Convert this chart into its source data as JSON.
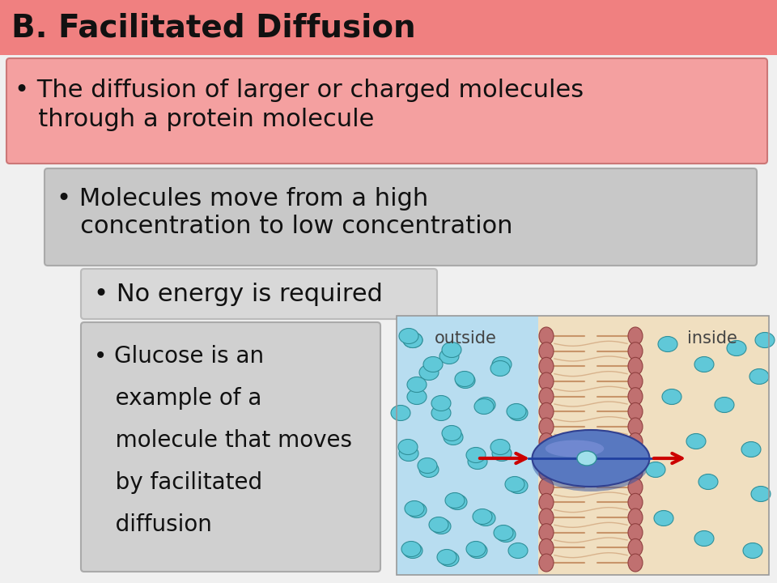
{
  "title": "B. Facilitated Diffusion",
  "title_bg": "#f08080",
  "slide_bg": "#f0f0f0",
  "bullet1_text1": "• The diffusion of larger or charged molecules",
  "bullet1_text2": "   through a protein molecule",
  "bullet1_bg": "#f4a0a0",
  "bullet1_border": "#cc7777",
  "bullet2_text1": "• Molecules move from a high",
  "bullet2_text2": "   concentration to low concentration",
  "bullet2_bg": "#c8c8c8",
  "bullet2_border": "#aaaaaa",
  "bullet3_text": "• No energy is required",
  "bullet3_bg": "#d8d8d8",
  "bullet3_border": "#bbbbbb",
  "bullet4_lines": [
    "• Glucose is an",
    "   example of a",
    "   molecule that moves",
    "   by facilitated",
    "   diffusion"
  ],
  "bullet4_bg": "#d0d0d0",
  "bullet4_border": "#aaaaaa",
  "text_color": "#111111",
  "outside_color": "#b8ddf0",
  "inside_color": "#f0dfc0",
  "lipid_head_color": "#c07070",
  "lipid_tail_color": "#c8956a",
  "lipid_head_edge": "#904040",
  "cyan_color": "#60c8d8",
  "cyan_edge": "#30909a",
  "protein_color": "#5878c0",
  "protein_edge": "#304090",
  "arrow_color": "#cc0000",
  "label_color": "#444444"
}
